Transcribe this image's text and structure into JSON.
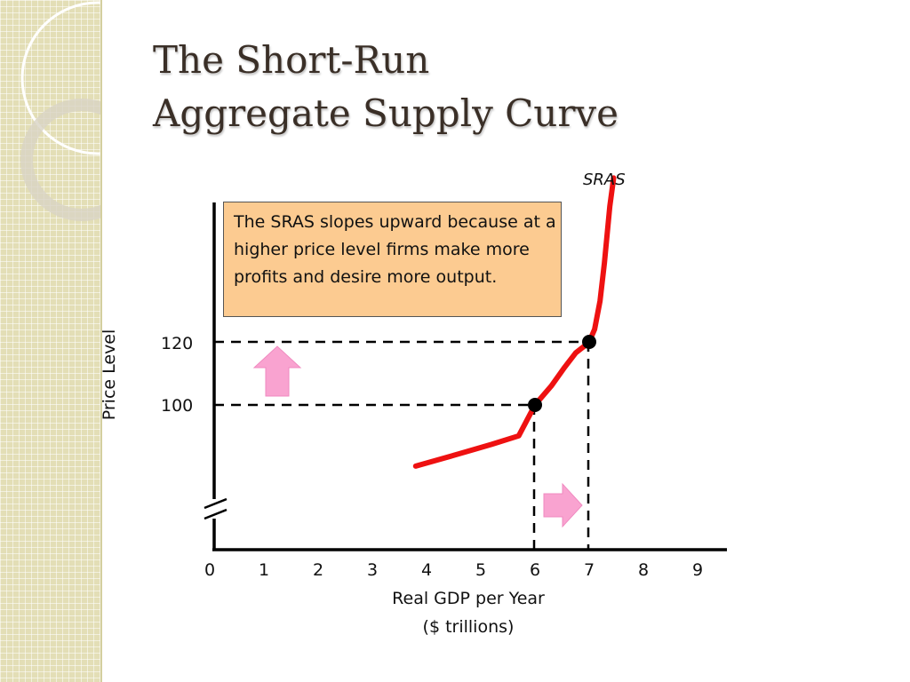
{
  "slide": {
    "title_lines": [
      "The Short-Run",
      "Aggregate Supply Curve"
    ],
    "note": "The SRAS  slopes upward because at a higher price level firms make more profits and desire more output."
  },
  "chart_data": {
    "type": "line",
    "series": [
      {
        "name": "SRAS",
        "color": "#ee1111",
        "x": [
          3.8,
          4.5,
          5.2,
          5.7,
          6.0,
          6.3,
          6.55,
          6.75,
          6.9,
          7.0,
          7.1,
          7.2,
          7.28,
          7.38,
          7.45
        ],
        "y": [
          80.6,
          84,
          87.5,
          90.2,
          100,
          106,
          112,
          116.5,
          118.5,
          120,
          124,
          133,
          145,
          163,
          172
        ]
      }
    ],
    "points": [
      {
        "x": 6,
        "y": 100
      },
      {
        "x": 7,
        "y": 120
      }
    ],
    "x_ticks": [
      "0",
      "1",
      "2",
      "3",
      "4",
      "5",
      "6",
      "7",
      "8",
      "9"
    ],
    "y_ticks": [
      {
        "label": "100",
        "value": 100
      },
      {
        "label": "120",
        "value": 120
      }
    ],
    "xlabel_lines": [
      "Real GDP per Year",
      "($ trillions)"
    ],
    "ylabel": "Price Level",
    "xlim": [
      0,
      9.5
    ],
    "ylim_visible": [
      75,
      180
    ],
    "axis_break": true,
    "arrows": [
      {
        "direction": "up",
        "color": "#f9a3d0",
        "meaning": "price level rises"
      },
      {
        "direction": "right",
        "color": "#f9a3d0",
        "meaning": "output rises"
      }
    ]
  }
}
